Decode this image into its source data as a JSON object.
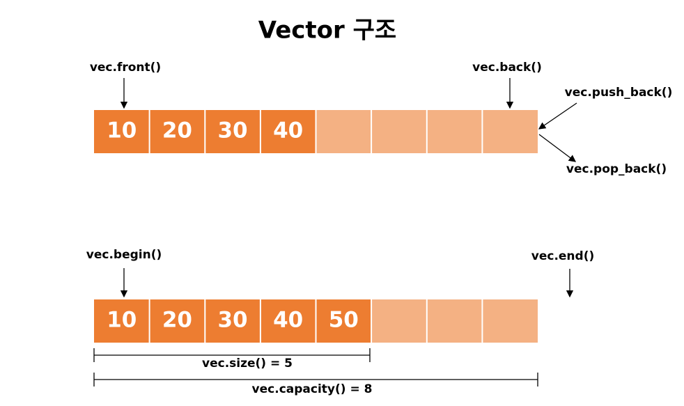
{
  "title": "Vector 구조",
  "top": {
    "values": [
      10,
      20,
      30,
      40
    ],
    "front": "vec.front()",
    "back": "vec.back()",
    "push_back": "vec.push_back()",
    "pop_back": "vec.pop_back()"
  },
  "bottom": {
    "values": [
      10,
      20,
      30,
      40,
      50
    ],
    "begin": "vec.begin()",
    "end": "vec.end()",
    "size": "vec.size() = 5",
    "capacity": "vec.capacity() = 8"
  }
}
